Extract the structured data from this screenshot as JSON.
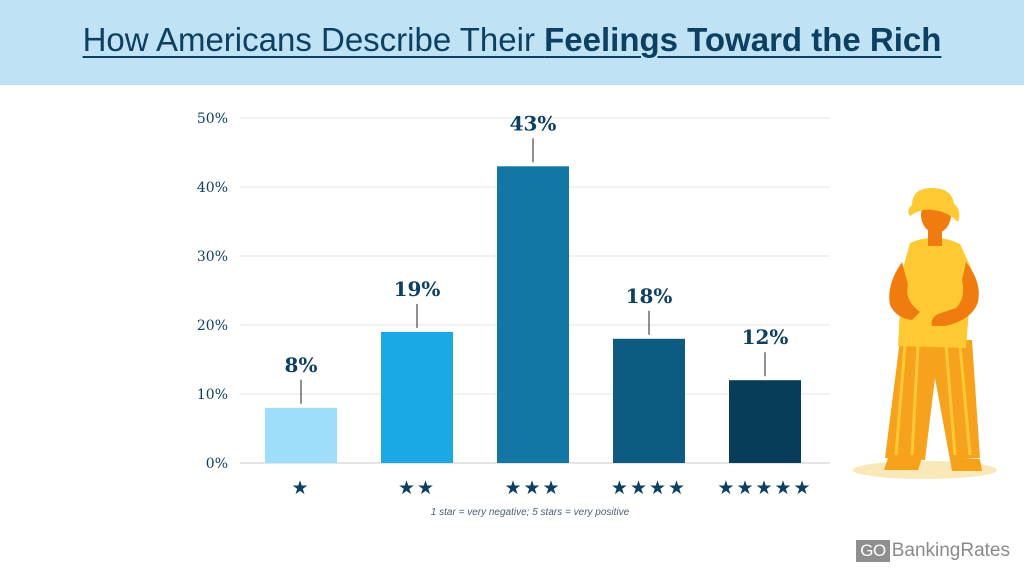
{
  "header": {
    "title_light": "How Americans Describe Their ",
    "title_bold": "Feelings Toward the Rich"
  },
  "chart_data": {
    "type": "bar",
    "title": "How Americans Describe Their Feelings Toward the Rich",
    "categories": [
      "★",
      "★★",
      "★★★",
      "★★★★",
      "★★★★★"
    ],
    "values": [
      8,
      19,
      43,
      18,
      12
    ],
    "data_labels": [
      "8%",
      "19%",
      "43%",
      "18%",
      "12%"
    ],
    "colors": [
      "#9ddffb",
      "#1ba8e4",
      "#1476a4",
      "#0d5b80",
      "#083d59"
    ],
    "yticks": [
      "0%",
      "10%",
      "20%",
      "30%",
      "40%",
      "50%"
    ],
    "ylim": [
      0,
      50
    ],
    "grid": true,
    "xlabel": "",
    "ylabel": "",
    "note": "1 star = very negative; 5 stars = very positive"
  },
  "brand": {
    "logo_box": "GO",
    "logo_text": "BankingRates"
  },
  "illustration": {
    "name": "person-illustration",
    "colors": {
      "skin": "#f07c10",
      "hat": "#ffc933",
      "shirt": "#ffc933",
      "pants": "#f6a21c",
      "shadow": "#fae8b8"
    }
  }
}
